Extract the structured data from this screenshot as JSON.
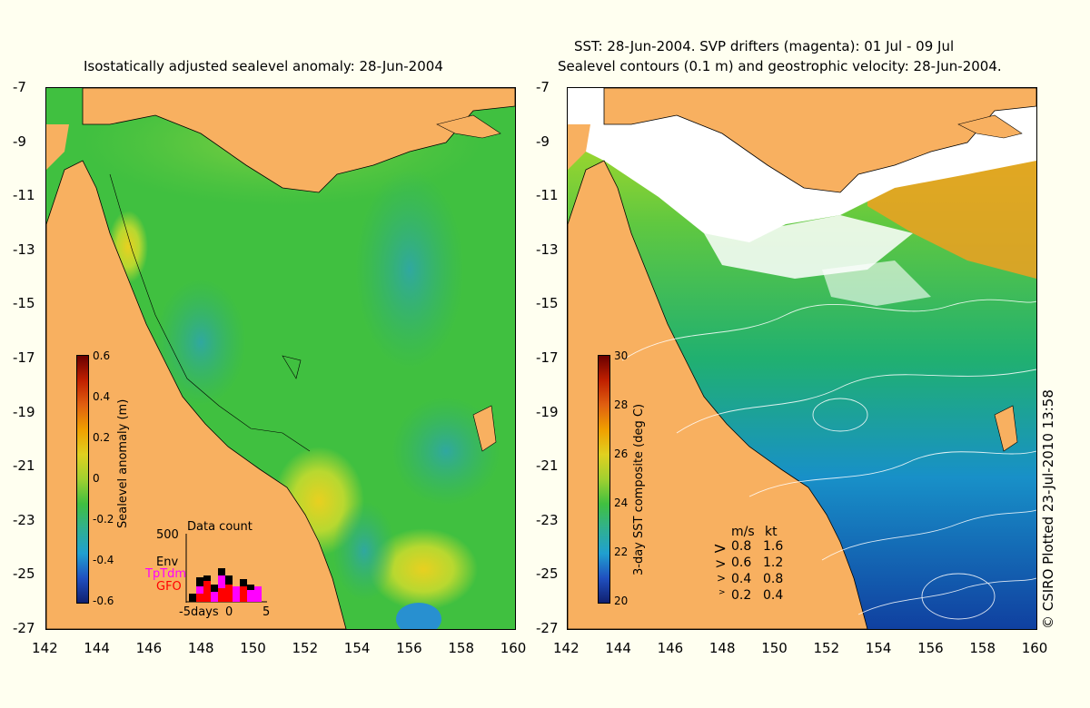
{
  "left_panel": {
    "title": "Isostatically adjusted sealevel anomaly: 28-Jun-2004",
    "colorbar": {
      "label": "Sealevel anomaly (m)",
      "ticks": [
        "0.6",
        "0.4",
        "0.2",
        "0",
        "-0.2",
        "-0.4",
        "-0.6"
      ],
      "range": [
        -0.6,
        0.6
      ]
    },
    "inset": {
      "title": "Data count",
      "y_tick": "500",
      "x_label_left": "-5days",
      "x_label_mid": "0",
      "x_label_right": "5",
      "series": [
        {
          "name": "Env",
          "color": "#000000"
        },
        {
          "name": "TpTdm",
          "color": "#ff00ff"
        },
        {
          "name": "GFO",
          "color": "#ff0000"
        }
      ]
    }
  },
  "right_panel": {
    "title_line1": "SST: 28-Jun-2004. SVP drifters (magenta): 01 Jul - 09 Jul",
    "title_line2": "Sealevel contours (0.1 m) and geostrophic velocity: 28-Jun-2004.",
    "colorbar": {
      "label": "3-day SST composite (deg C)",
      "ticks": [
        "30",
        "28",
        "26",
        "24",
        "22",
        "20"
      ],
      "range": [
        20,
        30
      ]
    },
    "velocity_legend": {
      "header_ms": "m/s",
      "header_kt": "kt",
      "rows": [
        {
          "ms": "0.8",
          "kt": "1.6"
        },
        {
          "ms": "0.6",
          "kt": "1.2"
        },
        {
          "ms": "0.4",
          "kt": "0.8"
        },
        {
          "ms": "0.2",
          "kt": "0.4"
        }
      ]
    }
  },
  "axes": {
    "lat_labels": [
      "-7",
      "-9",
      "-11",
      "-13",
      "-15",
      "-17",
      "-19",
      "-21",
      "-23",
      "-25",
      "-27"
    ],
    "lon_labels": [
      "142",
      "144",
      "146",
      "148",
      "150",
      "152",
      "154",
      "156",
      "158",
      "160"
    ],
    "lat_range": [
      -27,
      -7
    ],
    "lon_range": [
      142,
      160
    ]
  },
  "credit": "© CSIRO Plotted 23-Jul-2010 13:58",
  "colors": {
    "land": "#f8b060",
    "ocean_sla": "#40c040",
    "background": "#fffff0"
  }
}
